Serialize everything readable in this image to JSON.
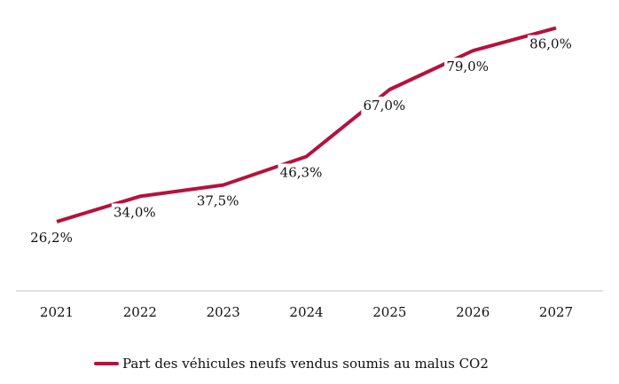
{
  "chart_data": {
    "type": "line",
    "categories": [
      "2021",
      "2022",
      "2023",
      "2024",
      "2025",
      "2026",
      "2027"
    ],
    "series": [
      {
        "name": "Part des véhicules neufs vendus soumis au malus CO2",
        "values": [
          26.2,
          34.0,
          37.5,
          46.3,
          67.0,
          79.0,
          86.0
        ],
        "labels": [
          "26,2%",
          "34,0%",
          "37,5%",
          "46,3%",
          "67,0%",
          "79,0%",
          "86,0%"
        ],
        "color": "#b5123e"
      }
    ],
    "title": "",
    "xlabel": "",
    "ylabel": "",
    "ylim": [
      0,
      90
    ],
    "grid": false,
    "legend_position": "bottom"
  }
}
